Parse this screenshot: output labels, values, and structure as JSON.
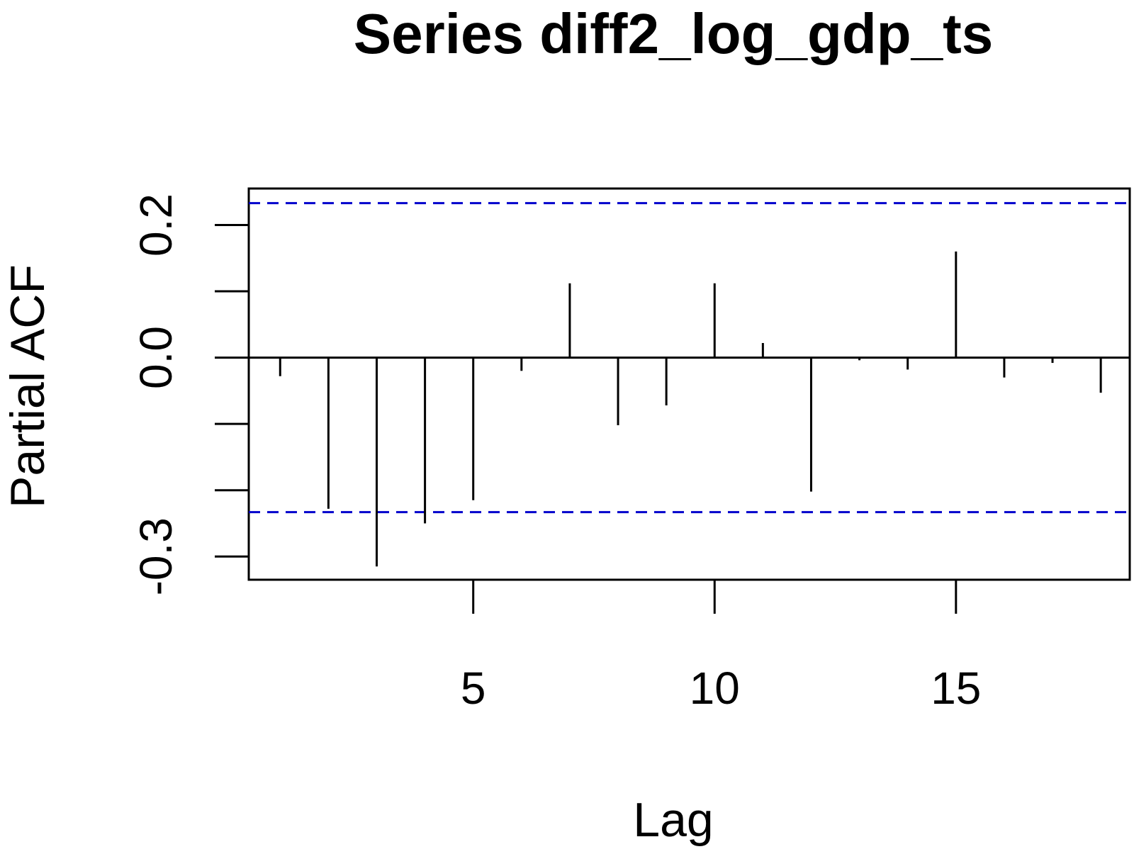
{
  "chart_data": {
    "type": "bar",
    "title": "Series  diff2_log_gdp_ts",
    "xlabel": "Lag",
    "ylabel": "Partial ACF",
    "xlim": [
      0.35,
      18.6
    ],
    "ylim": [
      -0.335,
      0.255
    ],
    "x_ticks": [
      5,
      10,
      15
    ],
    "x_tick_labels": [
      "5",
      "10",
      "15"
    ],
    "y_ticks": [
      -0.3,
      -0.2,
      -0.1,
      0.0,
      0.1,
      0.2
    ],
    "y_tick_labels": [
      "-0.3",
      "",
      "",
      "0.0",
      "",
      "0.2"
    ],
    "lags": [
      1,
      2,
      3,
      4,
      5,
      6,
      7,
      8,
      9,
      10,
      11,
      12,
      13,
      14,
      15,
      16,
      17,
      18
    ],
    "values": [
      -0.028,
      -0.228,
      -0.315,
      -0.25,
      -0.215,
      -0.02,
      0.112,
      -0.102,
      -0.072,
      0.112,
      0.022,
      -0.202,
      -0.004,
      -0.018,
      0.16,
      -0.03,
      -0.008,
      -0.053
    ],
    "confidence_bound": 0.233,
    "confidence_color": "#0000cc",
    "bar_color": "#000000",
    "grid": false,
    "legend": "none"
  }
}
